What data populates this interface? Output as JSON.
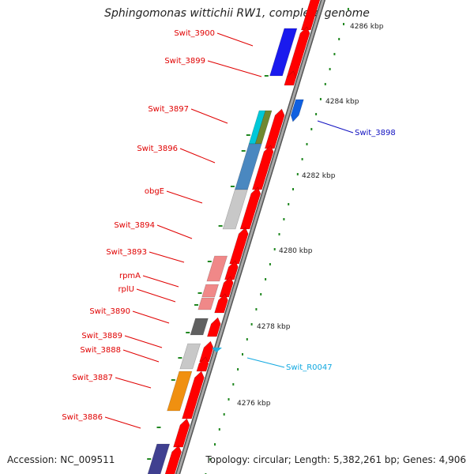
{
  "title": "Sphingomonas wittichii RW1, complete genome",
  "accession": "Accession: NC_009511",
  "topology": "Topology: circular; Length: 5,382,261 bp; Genes: 4,906",
  "colors": {
    "backbone": "#8a8a8a",
    "forward_gene": "#ff0000",
    "label_red": "#e00000",
    "label_blue": "#1010c0",
    "label_cyan": "#10a8e0",
    "tick": "#228822"
  },
  "scale_labels": [
    "4286 kbp",
    "4284 kbp",
    "4282 kbp",
    "4280 kbp",
    "4278 kbp",
    "4276 kbp"
  ],
  "labels_left": [
    {
      "text": "Swit_3900"
    },
    {
      "text": "Swit_3899"
    },
    {
      "text": "Swit_3897"
    },
    {
      "text": "Swit_3896"
    },
    {
      "text": "obgE"
    },
    {
      "text": "Swit_3894"
    },
    {
      "text": "Swit_3893"
    },
    {
      "text": "rpmA"
    },
    {
      "text": "rplU"
    },
    {
      "text": "Swit_3890"
    },
    {
      "text": "Swit_3889"
    },
    {
      "text": "Swit_3888"
    },
    {
      "text": "Swit_3887"
    },
    {
      "text": "Swit_3886"
    }
  ],
  "labels_right": [
    {
      "text": "Swit_3898"
    },
    {
      "text": "Swit_R0047"
    }
  ],
  "cog_colors": [
    "#1a1aee",
    "#ff0000",
    "#00c8d8",
    "#708830",
    "#4a88c0",
    "#c8c8c8",
    "#f08888",
    "#606060",
    "#f09010",
    "#404090",
    "#1060e0",
    "#20b0e0"
  ]
}
